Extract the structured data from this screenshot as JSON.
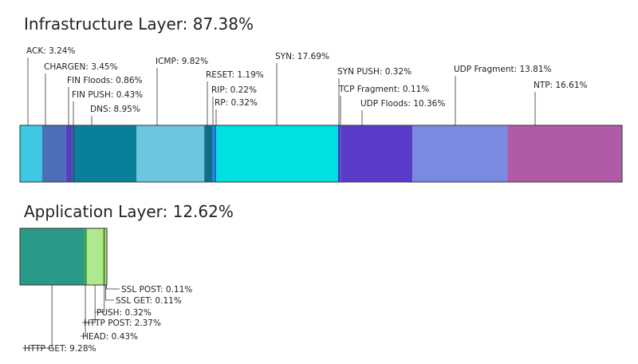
{
  "chart_data": [
    {
      "type": "stacked-bar",
      "title": "Infrastructure Layer: 87.38%",
      "values": [
        3.24,
        3.45,
        0.86,
        0.43,
        8.95,
        9.82,
        1.19,
        0.22,
        0.32,
        17.69,
        0.32,
        0.11,
        10.36,
        13.81,
        16.61
      ],
      "value_labels": [
        "ACK: 3.24%",
        "CHARGEN: 3.45%",
        "FIN Floods: 0.86%",
        "FIN PUSH: 0.43%",
        "DNS: 8.95%",
        "ICMP: 9.82%",
        "RESET: 1.19%",
        "RIP: 0.22%",
        "RP: 0.32%",
        "SYN: 17.69%",
        "SYN PUSH: 0.32%",
        "TCP Fragment: 0.11%",
        "UDP Floods: 10.36%",
        "UDP Fragment: 13.81%",
        "NTP: 16.61%"
      ],
      "colors": [
        "#3cc8e0",
        "#4a6fb8",
        "#5a3cc0",
        "#1a5f8a",
        "#0a7f9a",
        "#6cc6e0",
        "#0f6f8a",
        "#1a8fd0",
        "#2060e0",
        "#00e0e0",
        "#3040b0",
        "#4050c0",
        "#5a3ac8",
        "#7a8ae0",
        "#b05aa8"
      ]
    },
    {
      "type": "stacked-bar",
      "title": "Application Layer: 12.62%",
      "values": [
        9.28,
        0.43,
        2.37,
        0.32,
        0.11,
        0.11
      ],
      "value_labels": [
        "HTTP GET: 9.28%",
        "HEAD: 0.43%",
        "HTTP POST: 2.37%",
        "PUSH:  0.32%",
        "SSL GET: 0.11%",
        "SSL POST: 0.11%"
      ],
      "colors": [
        "#2a9a88",
        "#3aa050",
        "#b0e890",
        "#5a9a30",
        "#c0f0a0",
        "#90c070"
      ]
    }
  ]
}
